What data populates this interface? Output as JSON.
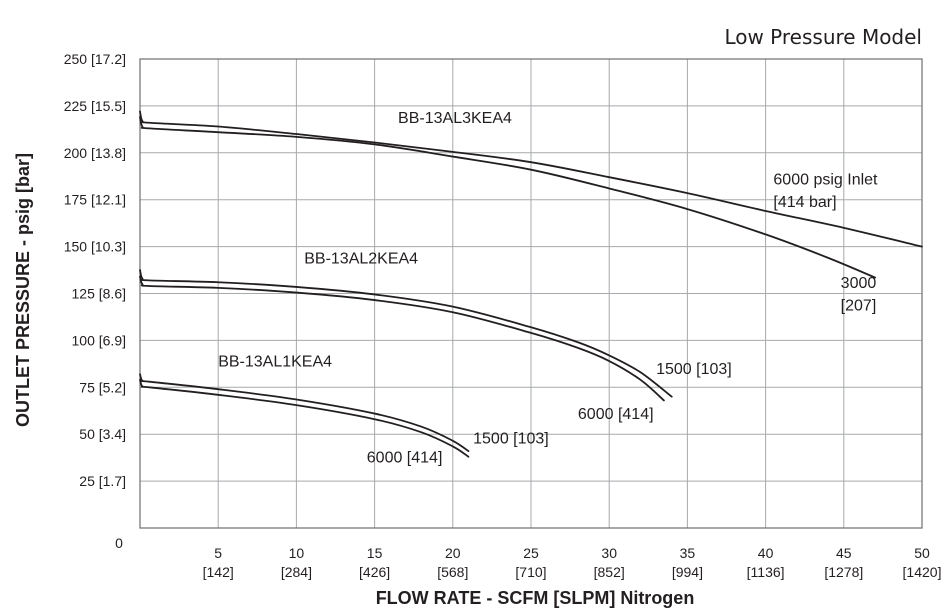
{
  "model_label": "Low Pressure Model",
  "chart_data": {
    "type": "line",
    "xlabel": "FLOW RATE - SCFM [SLPM] Nitrogen",
    "ylabel": "OUTLET PRESSURE - psig [bar]",
    "xlim": [
      0,
      50
    ],
    "ylim": [
      0,
      250
    ],
    "grid": true,
    "x_ticks": [
      {
        "value": 5,
        "label": "5",
        "sub": "[142]"
      },
      {
        "value": 10,
        "label": "10",
        "sub": "[284]"
      },
      {
        "value": 15,
        "label": "15",
        "sub": "[426]"
      },
      {
        "value": 20,
        "label": "20",
        "sub": "[568]"
      },
      {
        "value": 25,
        "label": "25",
        "sub": "[710]"
      },
      {
        "value": 30,
        "label": "30",
        "sub": "[852]"
      },
      {
        "value": 35,
        "label": "35",
        "sub": "[994]"
      },
      {
        "value": 40,
        "label": "40",
        "sub": "[1136]"
      },
      {
        "value": 45,
        "label": "45",
        "sub": "[1278]"
      },
      {
        "value": 50,
        "label": "50",
        "sub": "[1420]"
      }
    ],
    "x_origin_label": "0",
    "y_ticks": [
      {
        "value": 25,
        "label": "25 [1.7]"
      },
      {
        "value": 50,
        "label": "50 [3.4]"
      },
      {
        "value": 75,
        "label": "75 [5.2]"
      },
      {
        "value": 100,
        "label": "100 [6.9]"
      },
      {
        "value": 125,
        "label": "125 [8.6]"
      },
      {
        "value": 150,
        "label": "150 [10.3]"
      },
      {
        "value": 175,
        "label": "175 [12.1]"
      },
      {
        "value": 200,
        "label": "200 [13.8]"
      },
      {
        "value": 225,
        "label": "225 [15.5]"
      },
      {
        "value": 250,
        "label": "250 [17.2]"
      }
    ],
    "series": [
      {
        "id": "al3-6000",
        "points": [
          [
            0,
            222
          ],
          [
            0.15,
            217
          ],
          [
            0.6,
            216
          ],
          [
            5,
            214
          ],
          [
            10,
            210
          ],
          [
            15,
            205.5
          ],
          [
            20,
            200.5
          ],
          [
            25,
            195
          ],
          [
            30,
            187
          ],
          [
            35,
            178.5
          ],
          [
            40,
            169
          ],
          [
            45,
            160
          ],
          [
            50,
            150
          ]
        ]
      },
      {
        "id": "al3-3000",
        "points": [
          [
            0,
            219
          ],
          [
            0.15,
            214
          ],
          [
            0.6,
            213
          ],
          [
            5,
            211
          ],
          [
            10,
            208.5
          ],
          [
            15,
            204.5
          ],
          [
            20,
            198
          ],
          [
            25,
            191
          ],
          [
            30,
            181
          ],
          [
            35,
            170
          ],
          [
            40,
            156.5
          ],
          [
            44,
            144
          ],
          [
            47,
            133.5
          ]
        ]
      },
      {
        "id": "al2-6000",
        "points": [
          [
            0,
            137.5
          ],
          [
            0.15,
            133
          ],
          [
            0.6,
            132
          ],
          [
            5,
            131
          ],
          [
            10,
            128.5
          ],
          [
            15,
            124.5
          ],
          [
            20,
            118
          ],
          [
            25,
            107
          ],
          [
            28,
            99
          ],
          [
            30,
            92
          ],
          [
            32,
            83
          ],
          [
            34,
            70
          ]
        ]
      },
      {
        "id": "al2-1500",
        "points": [
          [
            0,
            134
          ],
          [
            0.15,
            130
          ],
          [
            0.6,
            129
          ],
          [
            5,
            128
          ],
          [
            10,
            125.5
          ],
          [
            15,
            121.5
          ],
          [
            20,
            115
          ],
          [
            25,
            104
          ],
          [
            28,
            96
          ],
          [
            30,
            89
          ],
          [
            32,
            79
          ],
          [
            33.5,
            68
          ]
        ]
      },
      {
        "id": "al1-1500",
        "points": [
          [
            0,
            82
          ],
          [
            0.15,
            78.5
          ],
          [
            0.6,
            78
          ],
          [
            5,
            74
          ],
          [
            10,
            68.5
          ],
          [
            15,
            61
          ],
          [
            18,
            54
          ],
          [
            20,
            46.5
          ],
          [
            21,
            41
          ]
        ]
      },
      {
        "id": "al1-6000",
        "points": [
          [
            0,
            79
          ],
          [
            0.15,
            75.5
          ],
          [
            0.6,
            75
          ],
          [
            5,
            71
          ],
          [
            10,
            65.5
          ],
          [
            15,
            58
          ],
          [
            18,
            51
          ],
          [
            20,
            43.5
          ],
          [
            21,
            38
          ]
        ]
      }
    ],
    "annotations": [
      {
        "text": "BB-13AL3KEA4",
        "x": 16.5,
        "y": 216
      },
      {
        "text": "6000 psig Inlet",
        "x": 40.5,
        "y": 183
      },
      {
        "text": "[414 bar]",
        "x": 40.5,
        "y": 171
      },
      {
        "text": "3000",
        "x": 44.8,
        "y": 128
      },
      {
        "text": "[207]",
        "x": 44.8,
        "y": 116
      },
      {
        "text": "BB-13AL2KEA4",
        "x": 10.5,
        "y": 141
      },
      {
        "text": "1500 [103]",
        "x": 33,
        "y": 82
      },
      {
        "text": "6000 [414]",
        "x": 28,
        "y": 58
      },
      {
        "text": "BB-13AL1KEA4",
        "x": 5,
        "y": 86
      },
      {
        "text": "1500 [103]",
        "x": 21.3,
        "y": 45
      },
      {
        "text": "6000 [414]",
        "x": 14.5,
        "y": 35
      }
    ]
  }
}
